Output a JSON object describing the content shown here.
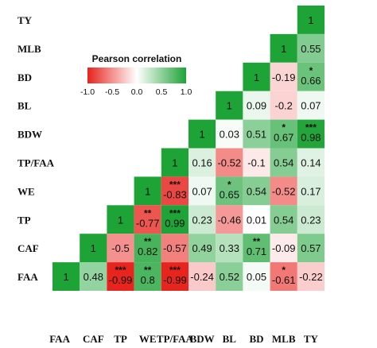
{
  "chart_data": {
    "type": "heatmap",
    "title": "",
    "variables": [
      "FAA",
      "CAF",
      "TP",
      "WE",
      "TP/FAA",
      "BDW",
      "BL",
      "BD",
      "MLB",
      "TY"
    ],
    "row_order_top_to_bottom": [
      "TY",
      "MLB",
      "BD",
      "BL",
      "BDW",
      "TP/FAA",
      "WE",
      "TP",
      "CAF",
      "FAA"
    ],
    "col_order_left_to_right": [
      "FAA",
      "CAF",
      "TP",
      "WE",
      "TP/FAA",
      "BDW",
      "BL",
      "BD",
      "MLB",
      "TY"
    ],
    "cells": {
      "TY": {
        "TY": {
          "v": 1,
          "sig": ""
        }
      },
      "MLB": {
        "MLB": {
          "v": 1,
          "sig": ""
        },
        "TY": {
          "v": 0.55,
          "sig": ""
        }
      },
      "BD": {
        "BD": {
          "v": 1,
          "sig": ""
        },
        "MLB": {
          "v": -0.19,
          "sig": ""
        },
        "TY": {
          "v": 0.66,
          "sig": "*"
        }
      },
      "BL": {
        "BL": {
          "v": 1,
          "sig": ""
        },
        "BD": {
          "v": 0.09,
          "sig": ""
        },
        "MLB": {
          "v": -0.2,
          "sig": ""
        },
        "TY": {
          "v": 0.07,
          "sig": ""
        }
      },
      "BDW": {
        "BDW": {
          "v": 1,
          "sig": ""
        },
        "BL": {
          "v": 0.03,
          "sig": ""
        },
        "BD": {
          "v": 0.51,
          "sig": ""
        },
        "MLB": {
          "v": 0.67,
          "sig": "*"
        },
        "TY": {
          "v": 0.98,
          "sig": "***"
        }
      },
      "TP/FAA": {
        "TP/FAA": {
          "v": 1,
          "sig": ""
        },
        "BDW": {
          "v": 0.16,
          "sig": ""
        },
        "BL": {
          "v": -0.52,
          "sig": ""
        },
        "BD": {
          "v": -0.1,
          "sig": ""
        },
        "MLB": {
          "v": 0.54,
          "sig": ""
        },
        "TY": {
          "v": 0.14,
          "sig": ""
        }
      },
      "WE": {
        "WE": {
          "v": 1,
          "sig": ""
        },
        "TP/FAA": {
          "v": -0.83,
          "sig": "***"
        },
        "BDW": {
          "v": 0.07,
          "sig": ""
        },
        "BL": {
          "v": 0.65,
          "sig": "*"
        },
        "BD": {
          "v": 0.54,
          "sig": ""
        },
        "MLB": {
          "v": -0.52,
          "sig": ""
        },
        "TY": {
          "v": 0.17,
          "sig": ""
        }
      },
      "TP": {
        "TP": {
          "v": 1,
          "sig": ""
        },
        "WE": {
          "v": -0.77,
          "sig": "**"
        },
        "TP/FAA": {
          "v": 0.99,
          "sig": "***"
        },
        "BDW": {
          "v": 0.23,
          "sig": ""
        },
        "BL": {
          "v": -0.46,
          "sig": ""
        },
        "BD": {
          "v": 0.01,
          "sig": ""
        },
        "MLB": {
          "v": 0.54,
          "sig": ""
        },
        "TY": {
          "v": 0.23,
          "sig": ""
        }
      },
      "CAF": {
        "CAF": {
          "v": 1,
          "sig": ""
        },
        "TP": {
          "v": -0.5,
          "sig": ""
        },
        "WE": {
          "v": 0.82,
          "sig": "**"
        },
        "TP/FAA": {
          "v": -0.57,
          "sig": ""
        },
        "BDW": {
          "v": 0.49,
          "sig": ""
        },
        "BL": {
          "v": 0.33,
          "sig": ""
        },
        "BD": {
          "v": 0.71,
          "sig": "**"
        },
        "MLB": {
          "v": -0.09,
          "sig": ""
        },
        "TY": {
          "v": 0.57,
          "sig": ""
        }
      },
      "FAA": {
        "FAA": {
          "v": 1,
          "sig": ""
        },
        "CAF": {
          "v": 0.48,
          "sig": ""
        },
        "TP": {
          "v": -0.99,
          "sig": "***"
        },
        "WE": {
          "v": 0.8,
          "sig": "**"
        },
        "TP/FAA": {
          "v": -0.99,
          "sig": "***"
        },
        "BDW": {
          "v": -0.24,
          "sig": ""
        },
        "BL": {
          "v": 0.52,
          "sig": ""
        },
        "BD": {
          "v": 0.05,
          "sig": ""
        },
        "MLB": {
          "v": -0.61,
          "sig": "*"
        },
        "TY": {
          "v": -0.22,
          "sig": ""
        }
      }
    },
    "legend": {
      "title": "Pearson correlation",
      "ticks": [
        "-1.0",
        "-0.5",
        "0.0",
        "0.5",
        "1.0"
      ],
      "range": [
        -1,
        1
      ],
      "placement": "top-left"
    },
    "colors": {
      "negative": "#e8221c",
      "neutral": "#ffffff",
      "positive": "#1ea337",
      "text": "#111111"
    }
  }
}
